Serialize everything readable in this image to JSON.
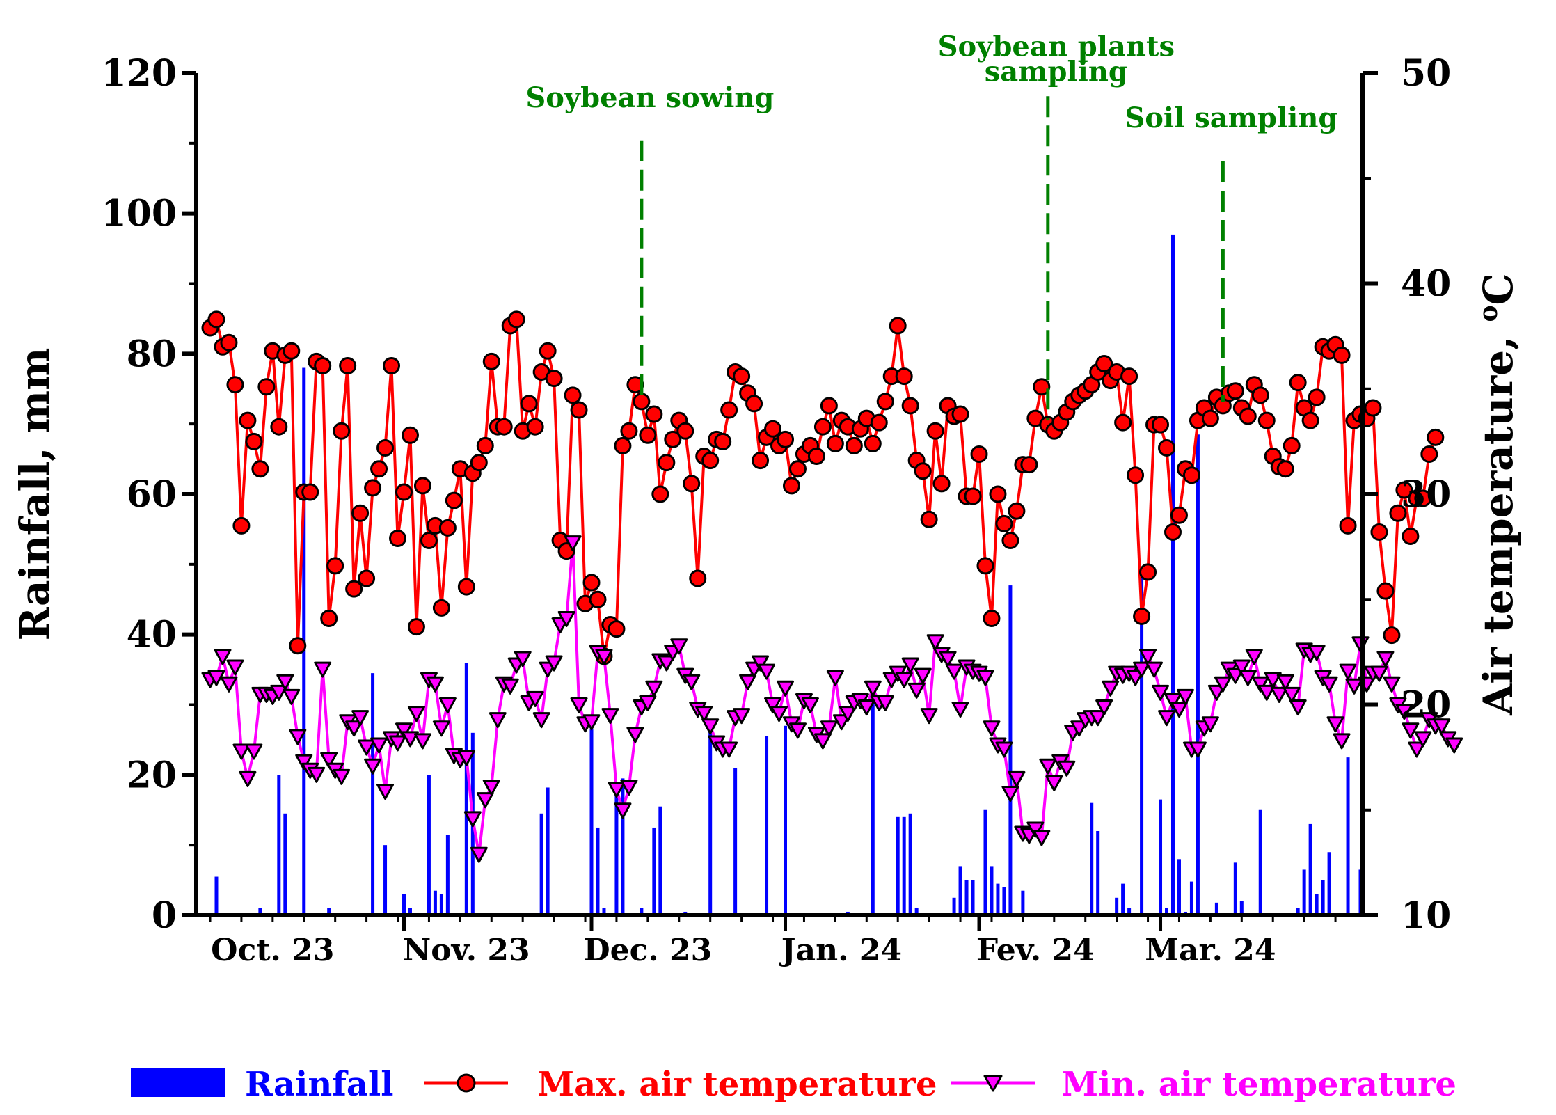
{
  "chart_data": {
    "type": "bar+line",
    "colors": {
      "rainfall": "#0000FF",
      "max_temp": "#FF0000",
      "min_temp": "#FF00FF",
      "annotation": "#008000",
      "axis": "#000000"
    },
    "left_axis": {
      "label": "Rainfall, mm",
      "ylim": [
        0,
        120
      ],
      "ticks": [
        "0",
        "20",
        "40",
        "60",
        "80",
        "100",
        "120"
      ]
    },
    "right_axis": {
      "label_text": "Air temperature, ",
      "label_sup": "o",
      "label_unit": "C",
      "ylim": [
        10,
        50
      ],
      "ticks": [
        "10",
        "20",
        "30",
        "40",
        "50"
      ]
    },
    "x_axis": {
      "unit": "day index from 2023-10-01",
      "range": [
        0,
        184
      ],
      "labels": [
        {
          "label": "Oct. 23",
          "day": 10
        },
        {
          "label": "Nov. 23",
          "day": 41
        },
        {
          "label": "Dec. 23",
          "day": 70
        },
        {
          "label": "Jan. 24",
          "day": 101
        },
        {
          "label": "Fev. 24",
          "day": 132
        },
        {
          "label": "Mar. 24",
          "day": 160
        }
      ],
      "major_ticks": [
        31,
        61,
        92,
        123,
        152
      ]
    },
    "annotations": [
      {
        "lines": [
          "Soybean sowing"
        ],
        "day": 69,
        "top_value": 46.8
      },
      {
        "lines": [
          "Soybean plants",
          "sampling"
        ],
        "day": 134,
        "top_value": 48.9
      },
      {
        "lines": [
          "Soil sampling"
        ],
        "day": 162,
        "top_value": 45.8
      }
    ],
    "rainfall": {
      "name": "Rainfall",
      "x": [
        1,
        8,
        11,
        12,
        15,
        19,
        26,
        28,
        31,
        32,
        35,
        36,
        37,
        38,
        41,
        42,
        53,
        54,
        61,
        62,
        63,
        65,
        66,
        69,
        71,
        72,
        76,
        80,
        84,
        89,
        92,
        102,
        106,
        110,
        111,
        112,
        113,
        119,
        120,
        121,
        122,
        124,
        125,
        126,
        127,
        128,
        130,
        141,
        142,
        145,
        146,
        147,
        149,
        152,
        153,
        154,
        155,
        156,
        157,
        158,
        161,
        164,
        165,
        168,
        174,
        175,
        176,
        177,
        178,
        179,
        182,
        184
      ],
      "values": [
        5.5,
        1,
        20,
        14.5,
        78,
        1,
        34.5,
        10,
        3,
        1,
        20,
        3.5,
        3,
        11.5,
        36,
        26,
        14.5,
        18.2,
        26.5,
        12.5,
        1,
        18,
        19.5,
        1,
        12.5,
        15.5,
        0.5,
        28,
        21,
        25.5,
        27,
        0.5,
        30.5,
        14,
        14,
        14.5,
        1,
        2.5,
        7,
        5,
        5,
        15,
        7,
        4.5,
        4,
        47,
        3.5,
        16,
        12,
        2.5,
        4.5,
        1,
        49,
        16.5,
        1,
        97,
        8,
        0.5,
        4.8,
        68.5,
        1.8,
        7.5,
        2,
        15,
        1,
        6.5,
        13,
        3,
        5,
        9,
        22.5,
        6.5
      ]
    },
    "series": [
      {
        "name": "Max. air temperature",
        "marker": "circle",
        "values": [
          37.9,
          38.3,
          37.0,
          37.2,
          35.2,
          28.5,
          33.5,
          32.5,
          31.2,
          35.1,
          36.8,
          33.2,
          36.6,
          36.8,
          22.8,
          30.1,
          30.1,
          36.3,
          36.1,
          24.1,
          26.6,
          33.0,
          36.1,
          25.5,
          29.1,
          26.0,
          30.3,
          31.2,
          32.2,
          36.1,
          27.9,
          30.1,
          32.8,
          23.7,
          30.4,
          27.8,
          28.5,
          24.6,
          28.4,
          29.7,
          31.2,
          25.6,
          31.0,
          31.5,
          32.3,
          36.3,
          33.2,
          33.2,
          38.0,
          38.3,
          33.0,
          34.3,
          33.2,
          35.8,
          36.8,
          35.5,
          27.8,
          27.3,
          34.7,
          34.0,
          24.8,
          25.8,
          25.0,
          22.3,
          23.8,
          23.6,
          32.3,
          33.0,
          35.2,
          34.4,
          32.8,
          33.8,
          30.0,
          31.5,
          32.6,
          33.5,
          33.0,
          30.5,
          26.0,
          31.8,
          31.6,
          32.6,
          32.5,
          34.0,
          35.8,
          35.6,
          34.8,
          34.3,
          31.6,
          32.7,
          33.1,
          32.3,
          32.6,
          30.4,
          31.2,
          31.9,
          32.3,
          31.8,
          33.2,
          34.2,
          32.4,
          33.5,
          33.2,
          32.3,
          33.1,
          33.6,
          32.4,
          33.4,
          34.4,
          35.6,
          38.0,
          35.6,
          34.2,
          31.6,
          31.1,
          28.8,
          33.0,
          30.5,
          34.2,
          33.7,
          33.8,
          29.9,
          29.9,
          31.9,
          26.6,
          24.1,
          30.0,
          28.6,
          27.8,
          29.2,
          31.4,
          31.4,
          33.6,
          35.1,
          33.3,
          33.0,
          33.4,
          33.9,
          34.4,
          34.7,
          34.9,
          35.2,
          35.8,
          36.2,
          35.4,
          35.8,
          33.4,
          35.6,
          30.9,
          24.2,
          26.3,
          33.3,
          33.3,
          32.2,
          28.2,
          29.0,
          31.2,
          30.9,
          33.5,
          34.1,
          33.6,
          34.6,
          34.2,
          34.8,
          34.9,
          34.1,
          33.7,
          35.2,
          34.7,
          33.5,
          31.8,
          31.3,
          31.2,
          32.3,
          35.3,
          34.1,
          33.5,
          34.6,
          37.0,
          36.8,
          37.1,
          36.6,
          28.5,
          33.5,
          33.8,
          33.6,
          34.1,
          28.2,
          25.4,
          23.3,
          29.1,
          30.2,
          28.0,
          29.8,
          29.8,
          31.9,
          32.7
        ]
      },
      {
        "name": "Min. air temperature",
        "marker": "triangle-down",
        "values": [
          21.2,
          21.3,
          22.3,
          21.0,
          21.8,
          17.8,
          16.5,
          17.8,
          20.5,
          20.5,
          20.4,
          20.6,
          21.1,
          20.4,
          18.5,
          17.3,
          16.9,
          16.7,
          21.7,
          17.4,
          16.9,
          16.6,
          19.2,
          18.9,
          19.4,
          18.0,
          17.1,
          18.1,
          15.9,
          18.4,
          18.2,
          18.8,
          18.4,
          19.6,
          18.3,
          21.2,
          21.0,
          18.9,
          20.0,
          17.6,
          17.4,
          17.5,
          14.6,
          12.9,
          15.5,
          16.1,
          19.3,
          21.0,
          20.9,
          21.9,
          22.2,
          20.1,
          20.3,
          19.3,
          21.7,
          22.0,
          23.8,
          24.1,
          27.7,
          20.0,
          19.1,
          19.2,
          22.5,
          22.3,
          19.5,
          16.0,
          15.0,
          16.1,
          18.6,
          19.9,
          20.1,
          20.8,
          22.1,
          22.0,
          22.5,
          22.8,
          21.4,
          21.1,
          19.8,
          19.6,
          19.0,
          18.2,
          17.9,
          17.9,
          19.4,
          19.5,
          21.1,
          21.7,
          22.0,
          21.6,
          20.0,
          19.6,
          20.8,
          19.1,
          18.8,
          20.2,
          20.0,
          18.6,
          18.3,
          18.9,
          21.3,
          19.2,
          19.6,
          20.1,
          20.2,
          19.9,
          20.8,
          20.1,
          20.1,
          21.2,
          21.5,
          21.2,
          21.9,
          20.7,
          21.4,
          19.5,
          23.0,
          22.4,
          22.2,
          21.6,
          19.8,
          21.8,
          21.6,
          21.5,
          21.3,
          18.9,
          18.1,
          17.9,
          15.8,
          16.5,
          13.9,
          13.8,
          14.1,
          13.7,
          17.1,
          16.3,
          17.3,
          17.0,
          18.7,
          18.9,
          19.3,
          19.4,
          19.4,
          19.9,
          20.8,
          21.5,
          21.4,
          21.5,
          21.3,
          21.7,
          22.3,
          21.7,
          20.6,
          19.4,
          20.2,
          19.8,
          20.4,
          17.9,
          17.9,
          18.9,
          19.1,
          20.6,
          21.0,
          21.7,
          21.4,
          21.8,
          21.3,
          22.3,
          21.0,
          20.6,
          21.2,
          20.5,
          21.1,
          20.5,
          19.9,
          22.6,
          22.4,
          22.5,
          21.3,
          21.0,
          19.1,
          18.3,
          21.6,
          20.9,
          22.9,
          21.0,
          21.5,
          21.5,
          22.2,
          21.0,
          20.0,
          19.7,
          18.8,
          17.9,
          18.4,
          19.3,
          19.0,
          19.0,
          18.4,
          18.1
        ]
      }
    ],
    "legend": [
      {
        "label": "Rainfall",
        "kind": "bar"
      },
      {
        "label": "Max. air temperature",
        "kind": "circle"
      },
      {
        "label": "Min. air temperature",
        "kind": "triangle-down"
      }
    ],
    "legend_position": "bottom"
  }
}
